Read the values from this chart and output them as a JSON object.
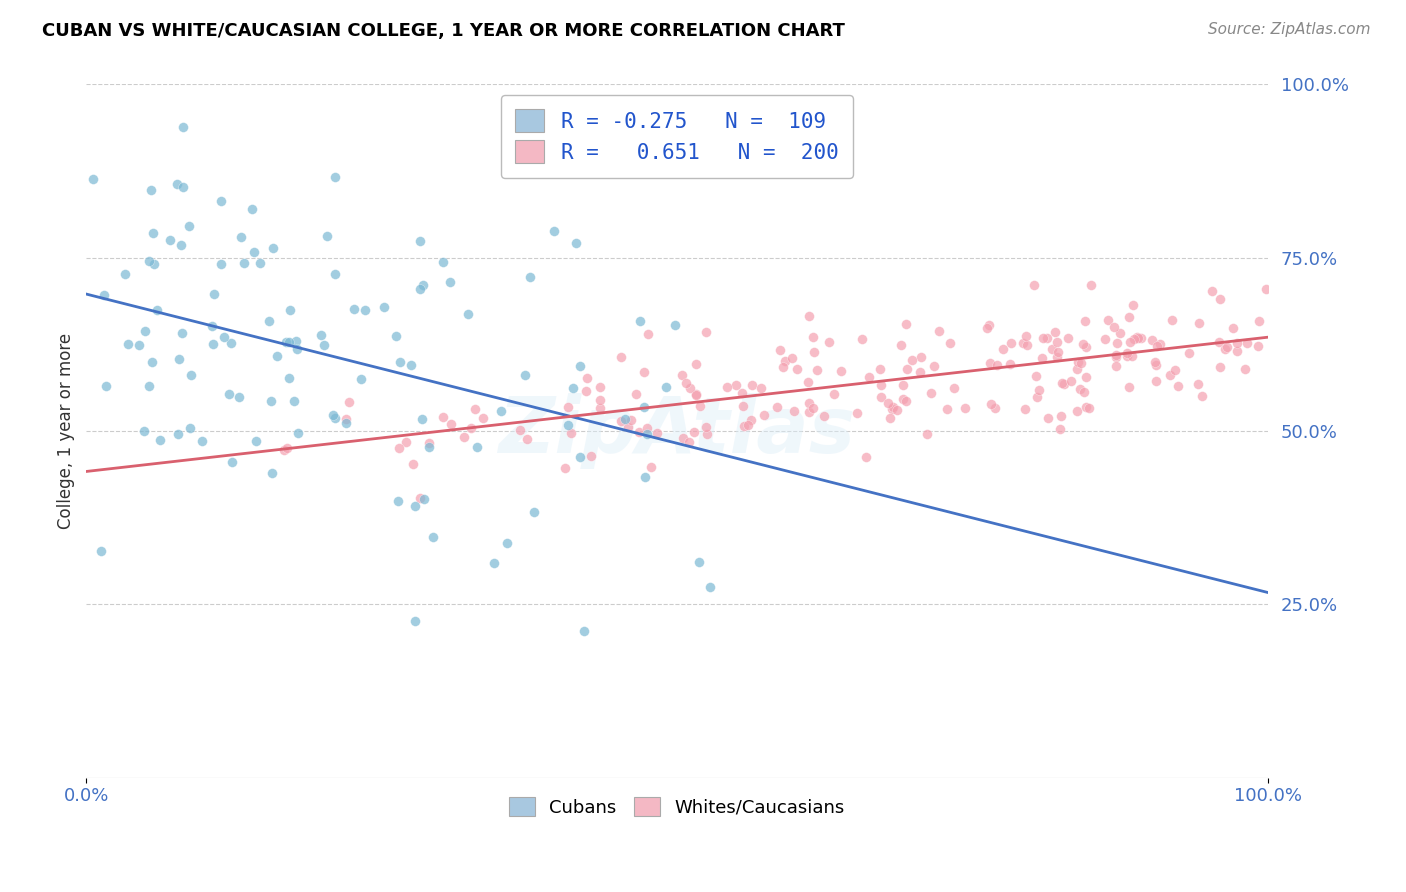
{
  "title": "CUBAN VS WHITE/CAUCASIAN COLLEGE, 1 YEAR OR MORE CORRELATION CHART",
  "source": "Source: ZipAtlas.com",
  "ylabel": "College, 1 year or more",
  "right_ytick_labels": [
    "25.0%",
    "50.0%",
    "75.0%",
    "100.0%"
  ],
  "right_ytick_values": [
    0.25,
    0.5,
    0.75,
    1.0
  ],
  "xlim": [
    0.0,
    1.0
  ],
  "ylim": [
    0.0,
    1.0
  ],
  "cuban_scatter_color": "#7bb8d4",
  "caucasian_scatter_color": "#f4a0b0",
  "cuban_line_color": "#4472c4",
  "caucasian_line_color": "#d9606e",
  "cuban_legend_color": "#a8c8e0",
  "caucasian_legend_color": "#f4b8c4",
  "R_cuban": -0.275,
  "N_cuban": 109,
  "R_caucasian": 0.651,
  "N_caucasian": 200,
  "legend_text_color": "#2255cc",
  "grid_color": "#cccccc",
  "background_color": "#ffffff",
  "title_color": "#000000",
  "source_color": "#888888",
  "tick_label_color": "#4472c4",
  "watermark": "ZipAtlas"
}
